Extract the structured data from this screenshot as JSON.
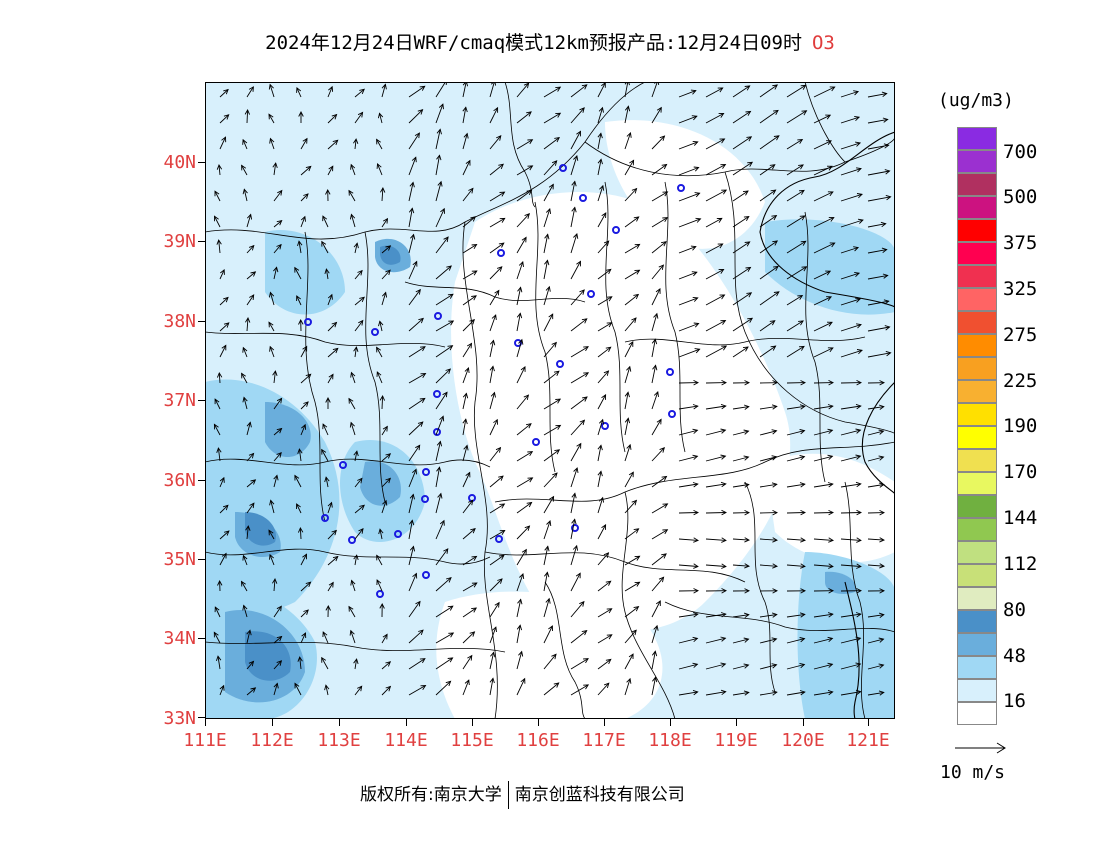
{
  "title": {
    "main": "2024年12月24日WRF/cmaq模式12km预报产品:12月24日09时",
    "species": "O3"
  },
  "map": {
    "lat_labels": [
      "40N",
      "39N",
      "38N",
      "37N",
      "36N",
      "35N",
      "34N",
      "33N"
    ],
    "lon_labels": [
      "111E",
      "112E",
      "113E",
      "114E",
      "115E",
      "116E",
      "117E",
      "118E",
      "119E",
      "120E",
      "121E"
    ]
  },
  "legend": {
    "unit": "(ug/m3)",
    "colors": [
      "#8a2be2",
      "#9b30d0",
      "#b03060",
      "#cc1280",
      "#ff0000",
      "#ff0050",
      "#f03050",
      "#ff6464",
      "#f05030",
      "#ff8c00",
      "#f8a020",
      "#f8b030",
      "#ffe000",
      "#ffff00",
      "#f0e050",
      "#e8f860",
      "#70b040",
      "#90c850",
      "#c0e080",
      "#c8e078",
      "#e0ecc0",
      "#4a90c8",
      "#6aaedc",
      "#a0d8f4",
      "#d8f0fc",
      "#ffffff"
    ],
    "labels": [
      "700",
      "500",
      "375",
      "325",
      "275",
      "225",
      "190",
      "170",
      "144",
      "112",
      "80",
      "48",
      "16"
    ]
  },
  "wind_reference": {
    "label": "10 m/s"
  },
  "copyright": {
    "left": "版权所有:南京大学",
    "right": "南京创蓝科技有限公司"
  }
}
